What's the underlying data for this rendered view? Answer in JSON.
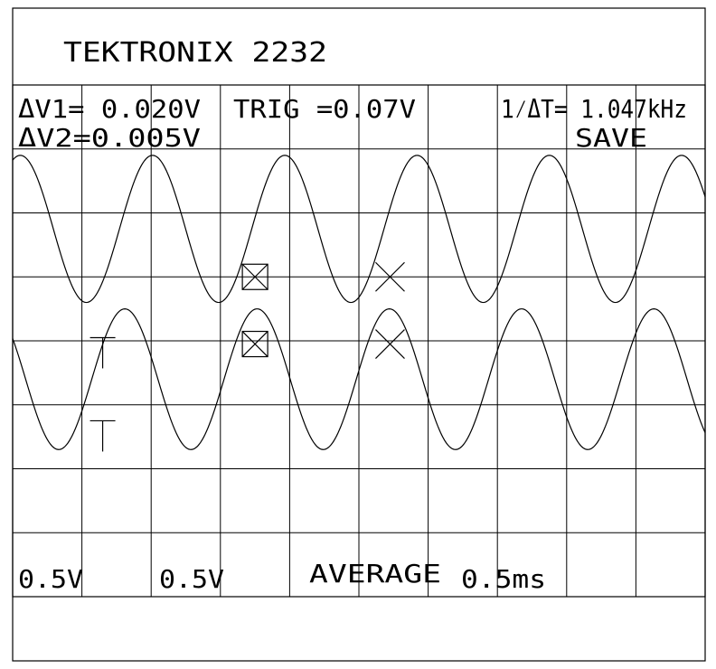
{
  "header": {
    "title": "TEKTRONIX 2232"
  },
  "readouts": {
    "delta_v1": "ΔV1= 0.020V",
    "delta_v2": "ΔV2=0.005V",
    "trigger": "TRIG =0.07V",
    "frequency": "1⁄ΔT= 1.047kHz",
    "mode": "SAVE"
  },
  "footer": {
    "ch1_scale": "0.5V",
    "ch2_scale": "0.5V",
    "acquisition": "AVERAGE",
    "timebase": "0.5ms"
  },
  "chart_data": {
    "type": "line",
    "title": "",
    "xlabel": "",
    "ylabel": "",
    "divisions": {
      "x": 10,
      "y": 8
    },
    "xlim": [
      0,
      10
    ],
    "ylim": [
      -4,
      4
    ],
    "grid": true,
    "series": [
      {
        "amplitude_div": 1.15,
        "center_div": 1.75,
        "period_div": 1.91,
        "peak_x_div": 2.02
      },
      {
        "amplitude_div": 1.1,
        "center_div": -0.6,
        "period_div": 1.91,
        "peak_x_div": 1.62
      }
    ],
    "cursors": [
      {
        "style": "boxed-x",
        "x_div": 3.5,
        "y_div": 1.0
      },
      {
        "style": "x",
        "x_div": 5.45,
        "y_div": 1.0
      },
      {
        "style": "boxed-x",
        "x_div": 3.5,
        "y_div": -0.05
      },
      {
        "style": "x",
        "x_div": 5.45,
        "y_div": -0.05
      }
    ],
    "trigger_markers": [
      {
        "x_div": 1.3,
        "y_div": 0.05
      },
      {
        "x_div": 1.3,
        "y_div": -1.25
      }
    ]
  }
}
